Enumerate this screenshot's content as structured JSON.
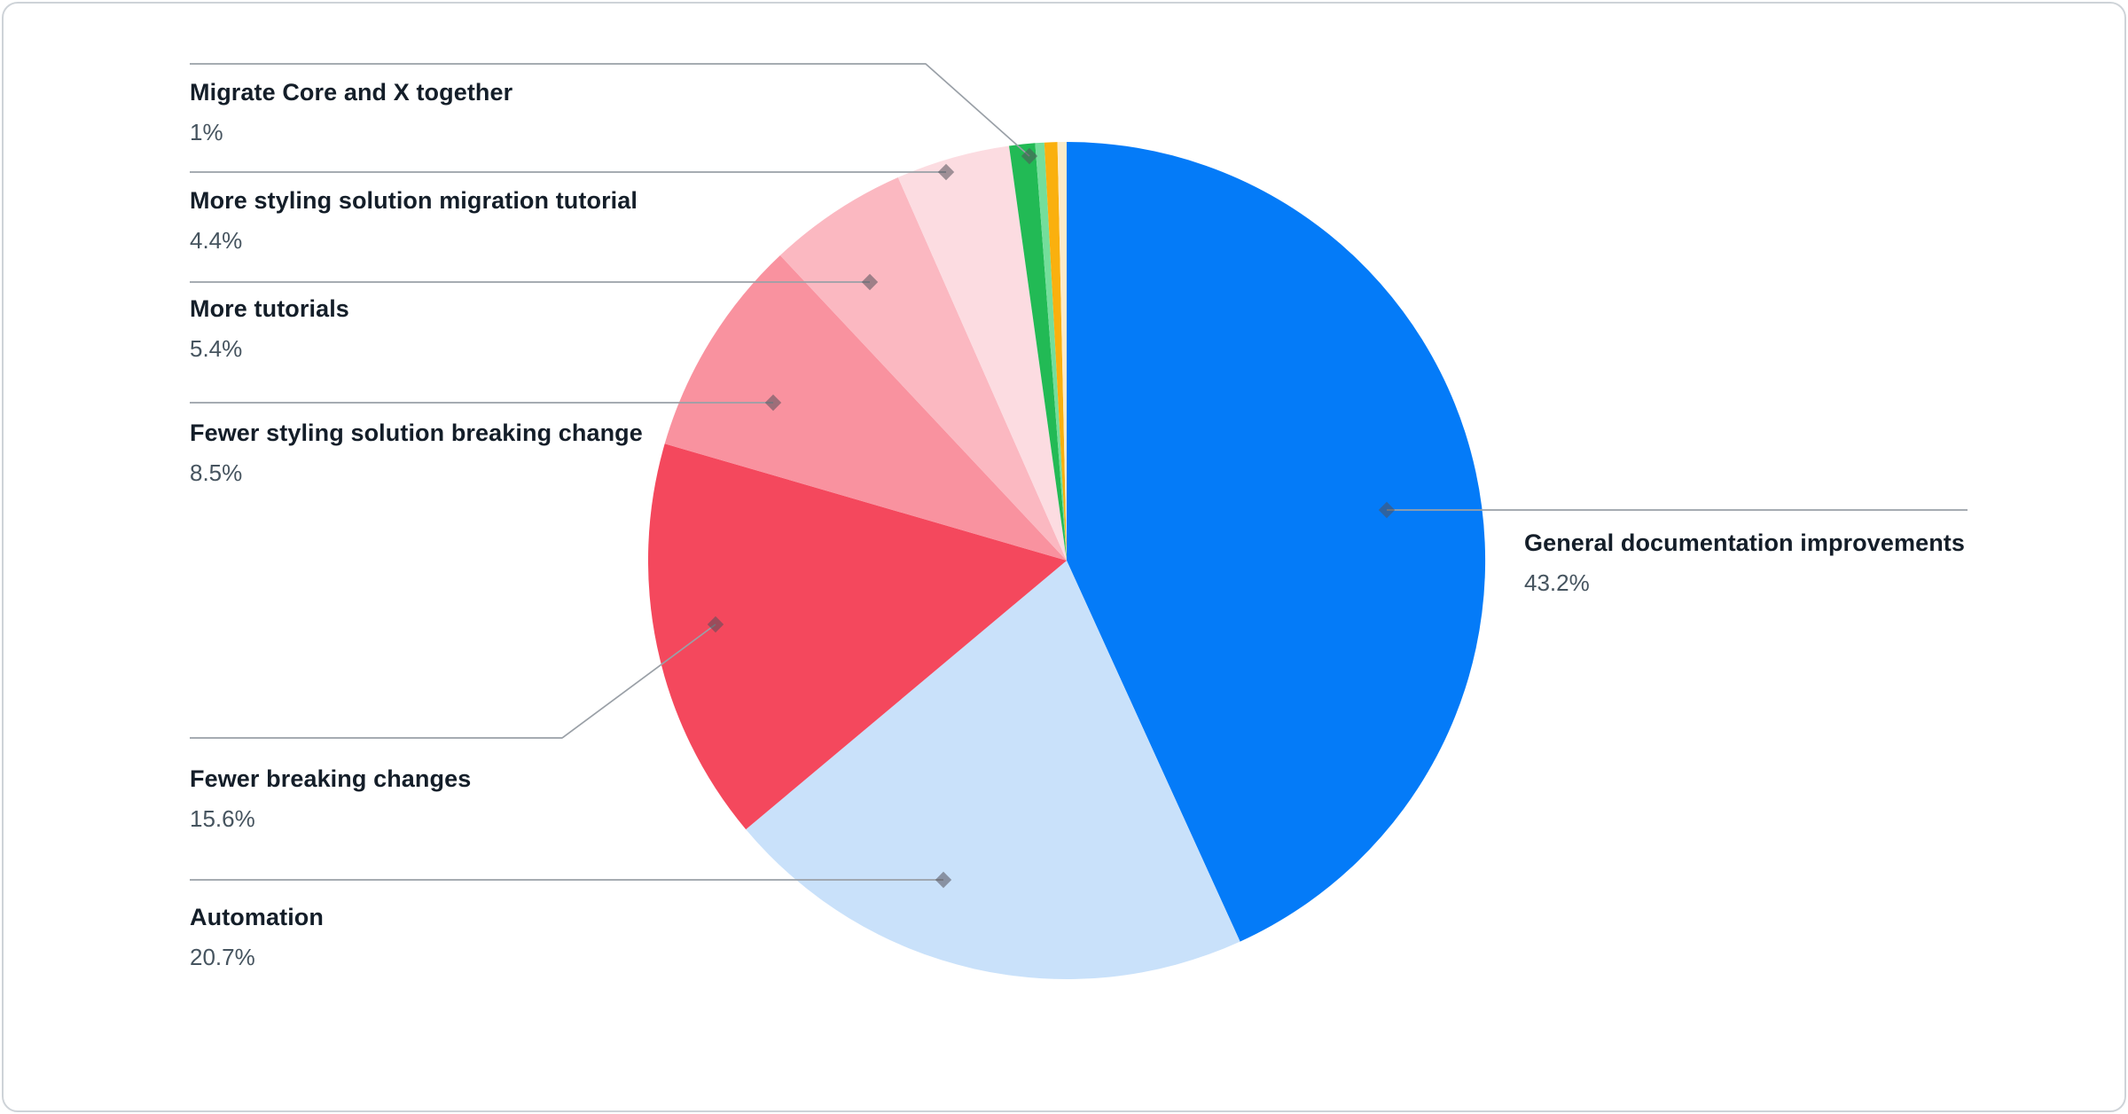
{
  "chart_data": {
    "type": "pie",
    "title": "",
    "legend_position": "none",
    "start_angle_deg": 0,
    "direction": "clockwise",
    "slices": [
      {
        "label": "General documentation improvements",
        "value": 43.2,
        "pct_label": "43.2%",
        "color": "#047bf8"
      },
      {
        "label": "Automation",
        "value": 20.7,
        "pct_label": "20.7%",
        "color": "#c9e1fa"
      },
      {
        "label": "Fewer breaking changes",
        "value": 15.6,
        "pct_label": "15.6%",
        "color": "#f4485d"
      },
      {
        "label": "Fewer styling solution breaking change",
        "value": 8.5,
        "pct_label": "8.5%",
        "color": "#f9929f"
      },
      {
        "label": "More tutorials",
        "value": 5.4,
        "pct_label": "5.4%",
        "color": "#fbb8c1"
      },
      {
        "label": "More styling solution migration tutorial",
        "value": 4.4,
        "pct_label": "4.4%",
        "color": "#fcdce1"
      },
      {
        "label": "Migrate Core and X together",
        "value": 1,
        "pct_label": "1%",
        "color": "#22ba55"
      },
      {
        "label": "",
        "value": 0.35,
        "pct_label": "",
        "color": "#74de9b"
      },
      {
        "label": "",
        "value": 0.5,
        "pct_label": "",
        "color": "#fab00e"
      },
      {
        "label": "",
        "value": 0.35,
        "pct_label": "",
        "color": "#fcebc9"
      }
    ]
  }
}
